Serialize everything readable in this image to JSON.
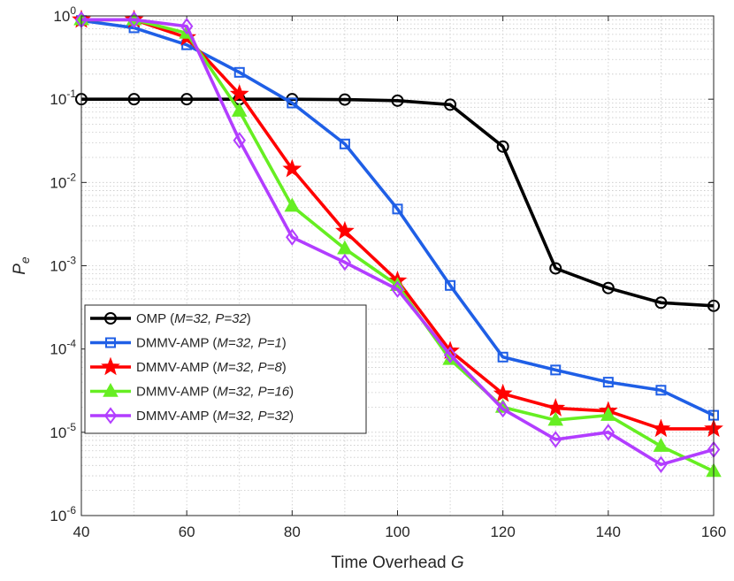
{
  "chart_data": {
    "type": "line",
    "xlabel": "Time Overhead",
    "xlabel_var": "G",
    "ylabel_base": "P",
    "ylabel_sub": "e",
    "x_scale": "linear",
    "y_scale": "log",
    "xlim": [
      40,
      160
    ],
    "ylim": [
      1e-06,
      1
    ],
    "xticks": [
      40,
      60,
      80,
      100,
      120,
      140,
      160
    ],
    "yticks": [
      {
        "base": "10",
        "exp": "0",
        "value": 1
      },
      {
        "base": "10",
        "exp": "-1",
        "value": 0.1
      },
      {
        "base": "10",
        "exp": "-2",
        "value": 0.01
      },
      {
        "base": "10",
        "exp": "-3",
        "value": 0.001
      },
      {
        "base": "10",
        "exp": "-4",
        "value": 0.0001
      },
      {
        "base": "10",
        "exp": "-5",
        "value": 1e-05
      },
      {
        "base": "10",
        "exp": "-6",
        "value": 1e-06
      }
    ],
    "grid": true,
    "legend_position": "bottom-left",
    "x": [
      40,
      50,
      60,
      70,
      80,
      90,
      100,
      110,
      120,
      130,
      140,
      150,
      160
    ],
    "series": [
      {
        "name": "OMP",
        "params": "M=32, P=32",
        "color": "#000000",
        "marker": "circle",
        "values": [
          0.1,
          0.1,
          0.1,
          0.1,
          0.1,
          0.099,
          0.096,
          0.086,
          0.027,
          0.00093,
          0.00054,
          0.00036,
          0.00033
        ]
      },
      {
        "name": "DMMV-AMP",
        "params": "M=32, P=1",
        "color": "#1f5fe6",
        "marker": "square",
        "values": [
          0.88,
          0.72,
          0.45,
          0.21,
          0.09,
          0.029,
          0.0048,
          0.00058,
          8e-05,
          5.6e-05,
          4e-05,
          3.2e-05,
          1.6e-05
        ]
      },
      {
        "name": "DMMV-AMP",
        "params": "M=32, P=8",
        "color": "#ff0000",
        "marker": "star",
        "values": [
          0.9,
          0.9,
          0.55,
          0.115,
          0.0145,
          0.0026,
          0.00066,
          9.5e-05,
          2.9e-05,
          1.95e-05,
          1.8e-05,
          1.1e-05,
          1.1e-05
        ]
      },
      {
        "name": "DMMV-AMP",
        "params": "M=32, P=16",
        "color": "#66ee22",
        "marker": "triangle",
        "values": [
          0.9,
          0.9,
          0.62,
          0.072,
          0.0052,
          0.0016,
          0.00058,
          7.5e-05,
          2e-05,
          1.4e-05,
          1.6e-05,
          6.8e-06,
          3.4e-06
        ]
      },
      {
        "name": "DMMV-AMP",
        "params": "M=32, P=32",
        "color": "#b23dff",
        "marker": "diamond",
        "values": [
          0.9,
          0.9,
          0.75,
          0.032,
          0.0022,
          0.0011,
          0.00052,
          8.5e-05,
          1.9e-05,
          8.2e-06,
          1e-05,
          4.1e-06,
          6.2e-06
        ]
      }
    ]
  }
}
